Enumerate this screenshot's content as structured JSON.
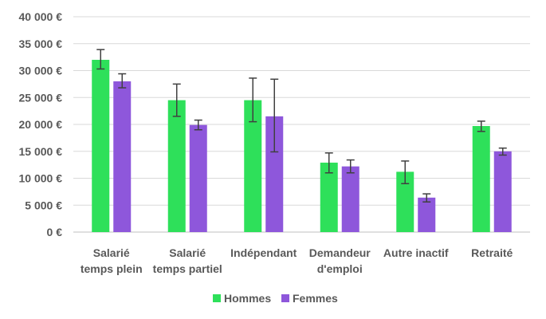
{
  "chart_data": {
    "type": "bar",
    "title": "",
    "xlabel": "",
    "ylabel": "",
    "ylim": [
      0,
      40000
    ],
    "ytick_step": 5000,
    "ytick_labels": [
      "0 €",
      "5 000 €",
      "10 000 €",
      "15 000 €",
      "20 000 €",
      "25 000 €",
      "30 000 €",
      "35 000 €",
      "40 000 €"
    ],
    "grid": true,
    "legend_position": "bottom",
    "categories": [
      [
        "Salarié",
        "temps plein"
      ],
      [
        "Salarié",
        "temps partiel"
      ],
      [
        "Indépendant"
      ],
      [
        "Demandeur",
        "d'emploi"
      ],
      [
        "Autre inactif"
      ],
      [
        "Retraité"
      ]
    ],
    "series": [
      {
        "name": "Hommes",
        "color": "#2ee05a",
        "values": [
          32000,
          24500,
          24500,
          12900,
          11200,
          19700
        ],
        "err_low": [
          30300,
          21500,
          20500,
          11000,
          9000,
          18700
        ],
        "err_high": [
          33900,
          27500,
          28600,
          14700,
          13200,
          20600
        ]
      },
      {
        "name": "Femmes",
        "color": "#8e57db",
        "values": [
          28000,
          19900,
          21500,
          12200,
          6400,
          15000
        ],
        "err_low": [
          26800,
          19000,
          14900,
          11000,
          5600,
          14300
        ],
        "err_high": [
          29400,
          20800,
          28400,
          13400,
          7100,
          15600
        ]
      }
    ]
  }
}
